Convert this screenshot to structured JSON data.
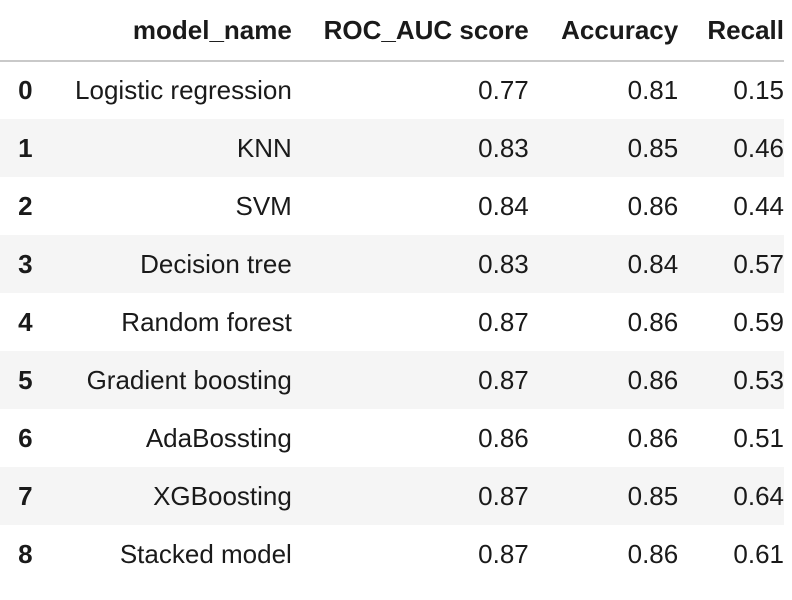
{
  "table": {
    "columns": [
      "",
      "model_name",
      "ROC_AUC score",
      "Accuracy",
      "Recall"
    ],
    "rows": [
      {
        "index": "0",
        "model_name": "Logistic regression",
        "roc_auc": "0.77",
        "accuracy": "0.81",
        "recall": "0.15"
      },
      {
        "index": "1",
        "model_name": "KNN",
        "roc_auc": "0.83",
        "accuracy": "0.85",
        "recall": "0.46"
      },
      {
        "index": "2",
        "model_name": "SVM",
        "roc_auc": "0.84",
        "accuracy": "0.86",
        "recall": "0.44"
      },
      {
        "index": "3",
        "model_name": "Decision tree",
        "roc_auc": "0.83",
        "accuracy": "0.84",
        "recall": "0.57"
      },
      {
        "index": "4",
        "model_name": "Random forest",
        "roc_auc": "0.87",
        "accuracy": "0.86",
        "recall": "0.59"
      },
      {
        "index": "5",
        "model_name": "Gradient boosting",
        "roc_auc": "0.87",
        "accuracy": "0.86",
        "recall": "0.53"
      },
      {
        "index": "6",
        "model_name": "AdaBossting",
        "roc_auc": "0.86",
        "accuracy": "0.86",
        "recall": "0.51"
      },
      {
        "index": "7",
        "model_name": "XGBoosting",
        "roc_auc": "0.87",
        "accuracy": "0.85",
        "recall": "0.64"
      },
      {
        "index": "8",
        "model_name": "Stacked model",
        "roc_auc": "0.87",
        "accuracy": "0.86",
        "recall": "0.61"
      }
    ]
  },
  "colors": {
    "header_border": "#c9c9c9",
    "row_stripe": "#f5f5f5",
    "text": "#1a1a1a"
  }
}
